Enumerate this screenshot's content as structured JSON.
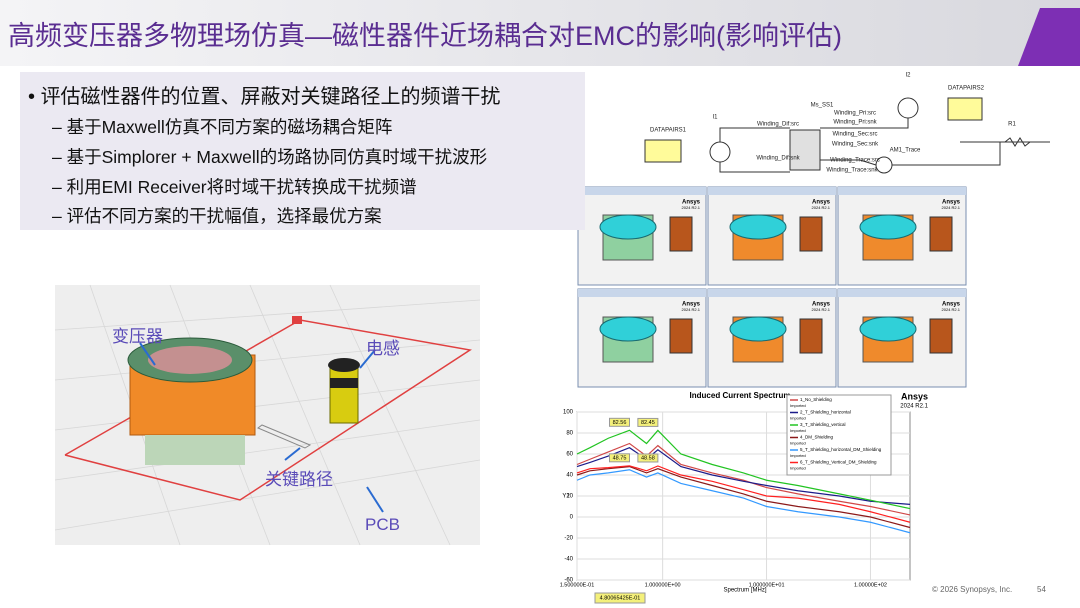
{
  "header": {
    "title": "高频变压器多物理场仿真—磁性器件近场耦合对EMC的影响(影响评估)"
  },
  "bullets": {
    "main": "评估磁性器件的位置、屏蔽对关键路径上的频谱干扰",
    "items": [
      "基于Maxwell仿真不同方案的磁场耦合矩阵",
      "基于Simplorer + Maxwell的场路协同仿真时域干扰波形",
      "利用EMI Receiver将时域干扰转换成干扰频谱",
      "评估不同方案的干扰幅值，选择最优方案"
    ]
  },
  "model_labels": {
    "transformer": "变压器",
    "inductor": "电感",
    "critical_path": "关键路径",
    "pcb": "PCB"
  },
  "schematic": {
    "labels": [
      "DATAPAIRS1",
      "DATAPAIRS2",
      "I1",
      "I2",
      "Ms_SS1",
      "Winding_Dif:src",
      "Winding_Dif:snk",
      "Winding_Pri:src",
      "Winding_Pri:snk",
      "Winding_Sec:src",
      "Winding_Sec:snk",
      "Winding_Trace:src",
      "Winding_Trace:snk",
      "R1",
      "AM1_Trace"
    ]
  },
  "field_views": {
    "brand": "Ansys",
    "version": "2024 R2.1"
  },
  "spectrum": {
    "title": "Induced Current Spectrum",
    "brand": "Ansys",
    "version": "2024 R2.1",
    "x_label": "Spectrum [MHz]",
    "y_label": "Y1",
    "log_x": true,
    "xlim": [
      0.15,
      240
    ],
    "xticks": [
      {
        "value": 0.15,
        "label": "1.500000E-01"
      },
      {
        "value": 1,
        "label": "1.000000E+00"
      },
      {
        "value": 10,
        "label": "1.000000E+01"
      },
      {
        "value": 100,
        "label": "1.00000E+02"
      }
    ],
    "ylim": [
      -60,
      100
    ],
    "yticks": [
      -60,
      -40,
      -20,
      0,
      20,
      40,
      60,
      80,
      100
    ],
    "grid": true,
    "x": [
      0.15,
      0.2,
      0.3,
      0.48,
      0.7,
      0.9,
      1.5,
      3,
      6,
      10,
      20,
      50,
      100,
      240
    ],
    "series": [
      {
        "name": "1_No_Shielding",
        "source": "Imported",
        "color": "#d04848",
        "values": [
          50,
          55,
          62,
          70,
          58,
          68,
          50,
          42,
          35,
          28,
          22,
          15,
          10,
          2
        ]
      },
      {
        "name": "2_T_Shielding_horizontal",
        "source": "Imported",
        "color": "#1c1c8a",
        "values": [
          48,
          52,
          58,
          66,
          55,
          64,
          48,
          40,
          34,
          30,
          25,
          20,
          15,
          12
        ]
      },
      {
        "name": "3_T_Shielding_vertical",
        "source": "Imported",
        "color": "#22c422",
        "values": [
          60,
          66,
          75,
          82.56,
          70,
          82.45,
          60,
          50,
          42,
          35,
          30,
          22,
          16,
          8
        ]
      },
      {
        "name": "4_DM_Shielding",
        "source": "Imported",
        "color": "#8b1a1a",
        "values": [
          40,
          44,
          46,
          48,
          42,
          46,
          38,
          30,
          22,
          15,
          10,
          5,
          0,
          -10
        ]
      },
      {
        "name": "5_T_Shielding_horizontal_DM_Shielding",
        "source": "Imported",
        "color": "#3399ff",
        "values": [
          35,
          40,
          42,
          45,
          38,
          42,
          32,
          25,
          18,
          10,
          5,
          0,
          -5,
          -15
        ]
      },
      {
        "name": "6_T_Shielding_Vertical_DM_Shielding",
        "source": "Imported",
        "color": "#ff2020",
        "values": [
          42,
          46,
          47,
          48.75,
          44,
          48.58,
          40,
          34,
          26,
          20,
          18,
          12,
          5,
          -5
        ]
      }
    ],
    "markers": [
      "spectrum.series.2.values.3",
      "spectrum.series.2.values.5",
      "spectrum.series.5.values.3",
      "spectrum.series.5.values.5"
    ],
    "cursor": "4.80065425E-01"
  },
  "footer": {
    "copyright": "© 2026 Synopsys, Inc.",
    "page": 54
  }
}
